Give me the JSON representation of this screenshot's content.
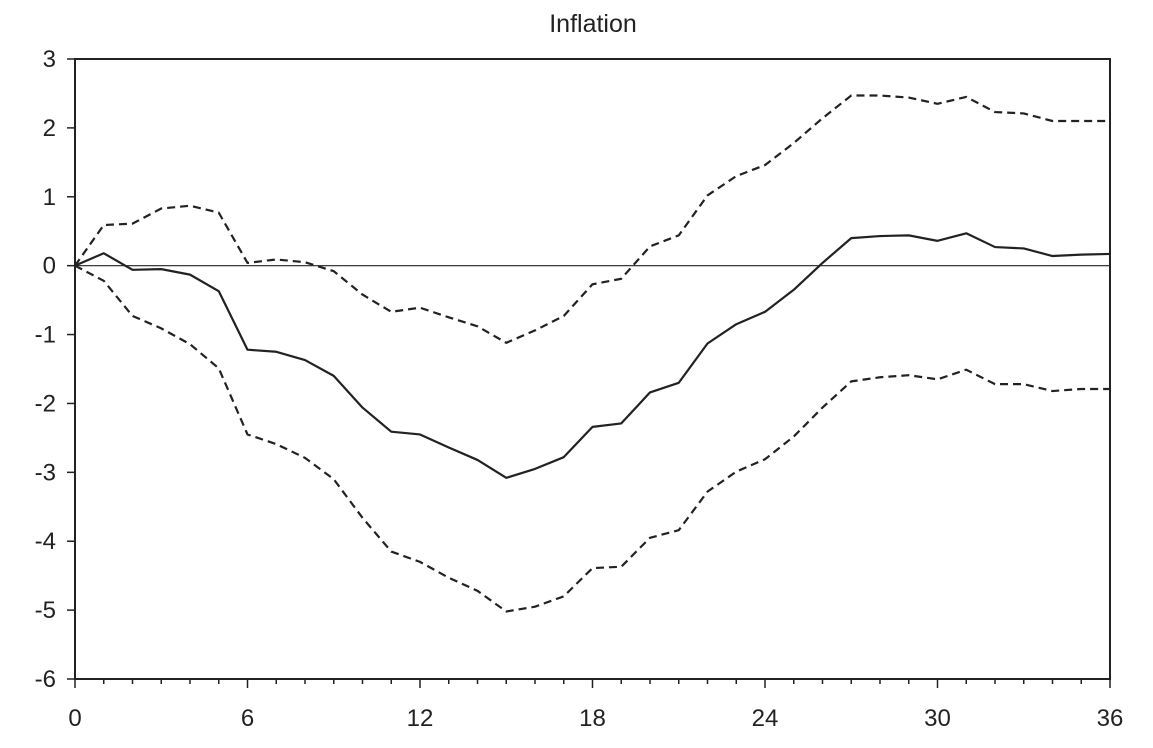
{
  "chart_data": {
    "type": "line",
    "title": "Inflation",
    "xlabel": "",
    "ylabel": "",
    "xlim": [
      0,
      36
    ],
    "ylim": [
      -6,
      3
    ],
    "xticks": [
      "0",
      "6",
      "12",
      "18",
      "24",
      "30",
      "36"
    ],
    "yticks": [
      "3",
      "2",
      "1",
      "0",
      "-1",
      "-2",
      "-3",
      "-4",
      "-5",
      "-6"
    ],
    "grid": false,
    "legend": "none",
    "zero_line": true,
    "x": [
      0,
      1,
      2,
      3,
      4,
      5,
      6,
      7,
      8,
      9,
      10,
      11,
      12,
      13,
      14,
      15,
      16,
      17,
      18,
      19,
      20,
      21,
      22,
      23,
      24,
      25,
      26,
      27,
      28,
      29,
      30,
      31,
      32,
      33,
      34,
      35,
      36
    ],
    "series": [
      {
        "style": "solid",
        "color": "#222222",
        "values": [
          0.0,
          0.18,
          -0.06,
          -0.05,
          -0.13,
          -0.37,
          -1.22,
          -1.25,
          -1.37,
          -1.6,
          -2.06,
          -2.41,
          -2.45,
          -2.64,
          -2.82,
          -3.08,
          -2.95,
          -2.78,
          -2.34,
          -2.29,
          -1.84,
          -1.7,
          -1.13,
          -0.85,
          -0.67,
          -0.35,
          0.04,
          0.4,
          0.43,
          0.44,
          0.36,
          0.47,
          0.27,
          0.25,
          0.14,
          0.16,
          0.17
        ]
      },
      {
        "style": "dashed",
        "color": "#222222",
        "values": [
          0.0,
          0.59,
          0.61,
          0.83,
          0.87,
          0.77,
          0.04,
          0.09,
          0.05,
          -0.08,
          -0.42,
          -0.67,
          -0.61,
          -0.75,
          -0.88,
          -1.12,
          -0.94,
          -0.73,
          -0.27,
          -0.19,
          0.28,
          0.44,
          1.02,
          1.3,
          1.46,
          1.78,
          2.14,
          2.47,
          2.47,
          2.44,
          2.35,
          2.45,
          2.23,
          2.21,
          2.1,
          2.1,
          2.1
        ]
      },
      {
        "style": "dashed",
        "color": "#222222",
        "values": [
          0.0,
          -0.22,
          -0.73,
          -0.91,
          -1.14,
          -1.49,
          -2.45,
          -2.59,
          -2.79,
          -3.1,
          -3.66,
          -4.15,
          -4.3,
          -4.53,
          -4.72,
          -5.02,
          -4.95,
          -4.8,
          -4.39,
          -4.37,
          -3.95,
          -3.84,
          -3.28,
          -2.99,
          -2.81,
          -2.48,
          -2.06,
          -1.68,
          -1.62,
          -1.59,
          -1.65,
          -1.51,
          -1.72,
          -1.72,
          -1.82,
          -1.79,
          -1.79
        ]
      }
    ]
  }
}
